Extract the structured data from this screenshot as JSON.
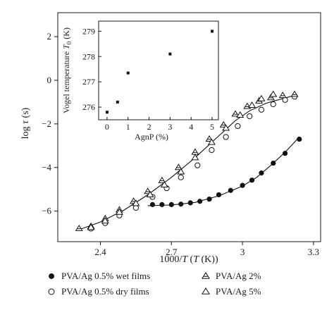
{
  "chart_data": [
    {
      "id": "main",
      "type": "scatter",
      "xlabel": "1000/T (T (K))",
      "ylabel": "log τ (s)",
      "xlim": [
        2.22,
        3.33
      ],
      "ylim": [
        -7.4,
        3.1
      ],
      "xticks": [
        2.4,
        2.7,
        3.0,
        3.3
      ],
      "xtick_labels": [
        "2.4",
        "2.7",
        "3",
        "3.3"
      ],
      "yticks": [
        -6,
        -4,
        -2,
        0,
        2
      ],
      "ytick_labels": [
        "−6",
        "−4",
        "−2",
        "0",
        "2"
      ],
      "grid": false,
      "legend_position": "bottom",
      "series": [
        {
          "name": "PVA/Ag 0.5% wet films",
          "marker": "filled-circle",
          "points": [
            [
              2.55,
              -5.85
            ],
            [
              2.62,
              -5.7
            ],
            [
              2.66,
              -5.7
            ],
            [
              2.7,
              -5.7
            ],
            [
              2.74,
              -5.68
            ],
            [
              2.78,
              -5.62
            ],
            [
              2.82,
              -5.55
            ],
            [
              2.86,
              -5.45
            ],
            [
              2.9,
              -5.25
            ],
            [
              2.95,
              -5.05
            ],
            [
              3.0,
              -4.82
            ],
            [
              3.04,
              -4.58
            ],
            [
              3.08,
              -4.25
            ],
            [
              3.13,
              -3.8
            ],
            [
              3.18,
              -3.35
            ],
            [
              3.24,
              -2.7
            ]
          ]
        },
        {
          "name": "PVA/Ag 0.5% dry films",
          "marker": "open-circle",
          "points": [
            [
              2.36,
              -6.8
            ],
            [
              2.42,
              -6.55
            ],
            [
              2.48,
              -6.2
            ],
            [
              2.55,
              -5.85
            ],
            [
              2.62,
              -5.35
            ],
            [
              2.68,
              -4.95
            ],
            [
              2.74,
              -4.45
            ],
            [
              2.81,
              -3.9
            ],
            [
              2.87,
              -3.2
            ],
            [
              2.93,
              -2.6
            ],
            [
              2.98,
              -2.1
            ],
            [
              3.03,
              -1.65
            ],
            [
              3.08,
              -1.35
            ],
            [
              3.13,
              -1.1
            ],
            [
              3.18,
              -0.9
            ],
            [
              3.22,
              -0.75
            ]
          ]
        },
        {
          "name": "PVA/Ag 2%",
          "marker": "open-triangle-bar",
          "points": [
            [
              2.31,
              -6.8
            ],
            [
              2.36,
              -6.7
            ],
            [
              2.42,
              -6.35
            ],
            [
              2.48,
              -5.95
            ],
            [
              2.54,
              -5.55
            ],
            [
              2.6,
              -5.1
            ],
            [
              2.66,
              -4.6
            ],
            [
              2.73,
              -4.0
            ],
            [
              2.8,
              -3.3
            ],
            [
              2.86,
              -2.7
            ],
            [
              2.92,
              -2.05
            ],
            [
              2.97,
              -1.55
            ],
            [
              3.02,
              -1.2
            ],
            [
              3.07,
              -0.95
            ],
            [
              3.12,
              -0.8
            ],
            [
              3.17,
              -0.7
            ],
            [
              3.22,
              -0.65
            ]
          ]
        },
        {
          "name": "PVA/Ag 5%",
          "marker": "open-triangle",
          "points": [
            [
              2.36,
              -6.75
            ],
            [
              2.42,
              -6.45
            ],
            [
              2.48,
              -6.05
            ],
            [
              2.55,
              -5.65
            ],
            [
              2.61,
              -5.25
            ],
            [
              2.67,
              -4.8
            ],
            [
              2.74,
              -4.2
            ],
            [
              2.8,
              -3.55
            ],
            [
              2.87,
              -2.85
            ],
            [
              2.93,
              -2.2
            ],
            [
              2.99,
              -1.6
            ],
            [
              3.04,
              -1.15
            ],
            [
              3.08,
              -0.85
            ],
            [
              3.13,
              -0.65
            ]
          ]
        }
      ],
      "fits": [
        {
          "points": [
            [
              2.31,
              -6.85
            ],
            [
              2.4,
              -6.5
            ],
            [
              2.5,
              -5.95
            ],
            [
              2.6,
              -5.25
            ],
            [
              2.7,
              -4.45
            ],
            [
              2.8,
              -3.55
            ],
            [
              2.9,
              -2.55
            ],
            [
              2.97,
              -1.85
            ],
            [
              3.03,
              -1.4
            ],
            [
              3.1,
              -1.05
            ],
            [
              3.2,
              -0.75
            ],
            [
              3.23,
              -0.7
            ]
          ]
        },
        {
          "points": [
            [
              2.6,
              -5.75
            ],
            [
              2.7,
              -5.72
            ],
            [
              2.8,
              -5.6
            ],
            [
              2.9,
              -5.3
            ],
            [
              3.0,
              -4.85
            ],
            [
              3.06,
              -4.45
            ],
            [
              3.12,
              -3.9
            ],
            [
              3.18,
              -3.3
            ],
            [
              3.24,
              -2.6
            ]
          ]
        }
      ]
    },
    {
      "id": "inset",
      "type": "scatter",
      "xlabel": "AgnP (%)",
      "ylabel": "Vogel temperature T0 (K)",
      "xlim": [
        -0.4,
        5.3
      ],
      "ylim": [
        275.5,
        279.4
      ],
      "xticks": [
        0,
        1,
        2,
        3,
        4,
        5
      ],
      "xtick_labels": [
        "0",
        "1",
        "2",
        "3",
        "4",
        "5"
      ],
      "yticks": [
        276,
        277,
        278,
        279
      ],
      "ytick_labels": [
        "276",
        "277",
        "278",
        "279"
      ],
      "series": [
        {
          "name": "",
          "marker": "filled-square",
          "points": [
            [
              0,
              275.8
            ],
            [
              0.5,
              276.2
            ],
            [
              1,
              277.35
            ],
            [
              3,
              278.1
            ],
            [
              5,
              279.0
            ]
          ]
        }
      ]
    }
  ]
}
